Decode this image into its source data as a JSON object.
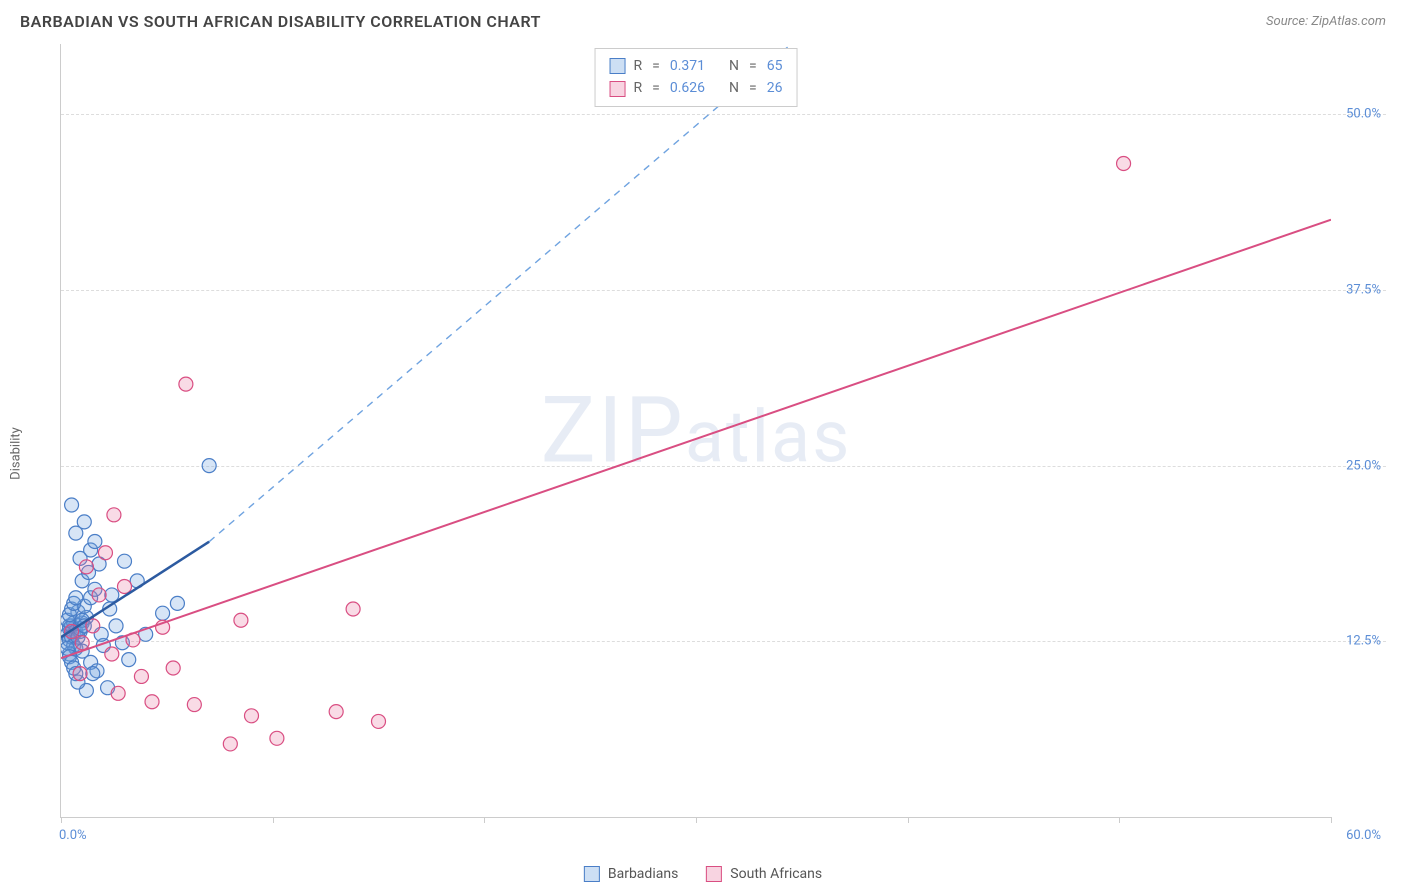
{
  "title": "BARBADIAN VS SOUTH AFRICAN DISABILITY CORRELATION CHART",
  "source_label": "Source: ZipAtlas.com",
  "y_axis_label": "Disability",
  "watermark_text": "ZIPatlas",
  "chart": {
    "type": "scatter",
    "xlim": [
      0,
      60
    ],
    "ylim": [
      0,
      55
    ],
    "x_ticks": [
      0,
      10,
      20,
      30,
      40,
      50,
      60
    ],
    "x_tick_labels": {
      "0": "0.0%",
      "60": "60.0%"
    },
    "y_ticks": [
      12.5,
      25.0,
      37.5,
      50.0
    ],
    "y_tick_labels": [
      "12.5%",
      "25.0%",
      "37.5%",
      "50.0%"
    ],
    "grid_color": "#dddddd",
    "axis_color": "#cccccc",
    "background_color": "#ffffff",
    "tick_label_color": "#5b8dd6",
    "marker_radius": 7,
    "marker_stroke_width": 1.2,
    "marker_fill_opacity": 0.25,
    "series": [
      {
        "name": "Barbadians",
        "color": "#6fa3e0",
        "stroke": "#4a7ec7",
        "fill": "rgba(111,163,224,0.28)",
        "trend": {
          "x1": 0,
          "y1": 12.8,
          "x2": 10,
          "y2": 22.5,
          "solid_until_x": 7,
          "dash_to_x": 34.5,
          "dash_to_y": 55,
          "width": 2
        },
        "stats": {
          "R": "0.371",
          "N": "65"
        },
        "points": [
          [
            0.3,
            13.0
          ],
          [
            0.5,
            13.2
          ],
          [
            0.6,
            13.4
          ],
          [
            0.4,
            13.6
          ],
          [
            0.6,
            13.0
          ],
          [
            0.7,
            13.2
          ],
          [
            0.4,
            13.4
          ],
          [
            0.5,
            13.6
          ],
          [
            0.6,
            13.8
          ],
          [
            0.3,
            12.4
          ],
          [
            0.4,
            12.6
          ],
          [
            0.5,
            12.8
          ],
          [
            0.6,
            12.2
          ],
          [
            0.7,
            12.0
          ],
          [
            0.4,
            11.6
          ],
          [
            0.9,
            13.2
          ],
          [
            1.0,
            13.8
          ],
          [
            1.2,
            14.2
          ],
          [
            0.8,
            14.6
          ],
          [
            1.1,
            15.0
          ],
          [
            1.4,
            15.6
          ],
          [
            1.6,
            16.2
          ],
          [
            1.0,
            16.8
          ],
          [
            1.3,
            17.4
          ],
          [
            1.8,
            18.0
          ],
          [
            0.9,
            18.4
          ],
          [
            1.4,
            19.0
          ],
          [
            1.6,
            19.6
          ],
          [
            0.7,
            20.2
          ],
          [
            1.1,
            21.0
          ],
          [
            0.5,
            22.2
          ],
          [
            1.0,
            11.8
          ],
          [
            1.4,
            11.0
          ],
          [
            1.7,
            10.4
          ],
          [
            2.0,
            12.2
          ],
          [
            2.3,
            14.8
          ],
          [
            2.6,
            13.6
          ],
          [
            2.9,
            12.4
          ],
          [
            3.2,
            11.2
          ],
          [
            1.2,
            9.0
          ],
          [
            0.8,
            9.6
          ],
          [
            2.2,
            9.2
          ],
          [
            1.5,
            10.2
          ],
          [
            1.9,
            13.0
          ],
          [
            2.4,
            15.8
          ],
          [
            4.0,
            13.0
          ],
          [
            4.8,
            14.5
          ],
          [
            5.5,
            15.2
          ],
          [
            3.6,
            16.8
          ],
          [
            3.0,
            18.2
          ],
          [
            7.0,
            25.0
          ],
          [
            0.3,
            14.0
          ],
          [
            0.4,
            14.4
          ],
          [
            0.5,
            14.8
          ],
          [
            0.6,
            15.2
          ],
          [
            0.7,
            15.6
          ],
          [
            0.3,
            12.0
          ],
          [
            0.4,
            11.4
          ],
          [
            0.5,
            11.0
          ],
          [
            0.6,
            10.6
          ],
          [
            0.7,
            10.2
          ],
          [
            0.8,
            12.8
          ],
          [
            0.9,
            13.4
          ],
          [
            1.0,
            14.0
          ],
          [
            1.1,
            13.6
          ]
        ]
      },
      {
        "name": "South Africans",
        "color": "#e76f9c",
        "stroke": "#d94e82",
        "fill": "rgba(231,111,156,0.25)",
        "trend": {
          "x1": 0,
          "y1": 11.3,
          "x2": 60,
          "y2": 42.5,
          "width": 2
        },
        "stats": {
          "R": "0.626",
          "N": "26"
        },
        "points": [
          [
            0.5,
            13.2
          ],
          [
            0.9,
            10.2
          ],
          [
            1.2,
            17.8
          ],
          [
            1.5,
            13.6
          ],
          [
            1.8,
            15.8
          ],
          [
            2.1,
            18.8
          ],
          [
            2.4,
            11.6
          ],
          [
            2.7,
            8.8
          ],
          [
            3.0,
            16.4
          ],
          [
            3.4,
            12.6
          ],
          [
            3.8,
            10.0
          ],
          [
            2.5,
            21.5
          ],
          [
            4.3,
            8.2
          ],
          [
            4.8,
            13.5
          ],
          [
            5.9,
            30.8
          ],
          [
            5.3,
            10.6
          ],
          [
            6.3,
            8.0
          ],
          [
            8.5,
            14.0
          ],
          [
            8.0,
            5.2
          ],
          [
            9.0,
            7.2
          ],
          [
            10.2,
            5.6
          ],
          [
            13.0,
            7.5
          ],
          [
            13.8,
            14.8
          ],
          [
            15.0,
            6.8
          ],
          [
            50.2,
            46.5
          ],
          [
            1.0,
            12.4
          ]
        ]
      }
    ]
  },
  "stat_box": {
    "rows": [
      {
        "swatch_fill": "rgba(111,163,224,0.35)",
        "swatch_border": "#4a7ec7",
        "R": "0.371",
        "N": "65"
      },
      {
        "swatch_fill": "rgba(231,111,156,0.30)",
        "swatch_border": "#d94e82",
        "R": "0.626",
        "N": "26"
      }
    ]
  },
  "legend": [
    {
      "label": "Barbadians",
      "fill": "rgba(111,163,224,0.35)",
      "border": "#4a7ec7"
    },
    {
      "label": "South Africans",
      "fill": "rgba(231,111,156,0.30)",
      "border": "#d94e82"
    }
  ]
}
